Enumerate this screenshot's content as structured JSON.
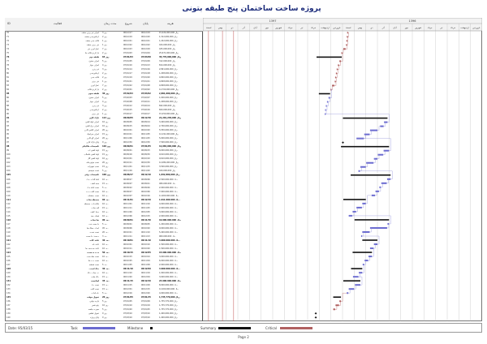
{
  "document": {
    "title": "پروژه ساخت ساختمان پنج طبقه بتونی",
    "page_label": "Page 2",
    "date_label": "Date: 95/03/15"
  },
  "table": {
    "headers": {
      "id": "ID",
      "name": "فعالیت",
      "duration": "مدت زمان",
      "start": "شروع",
      "finish": "پایان",
      "cost": "هزینه"
    }
  },
  "timeline": {
    "years": [
      "1396",
      "1397"
    ],
    "months": [
      "فروردین",
      "اردیبهشت",
      "خرداد",
      "تیر",
      "مرداد",
      "شهریور",
      "مهر",
      "آبان",
      "آذر",
      "دی",
      "بهمن",
      "اسفند",
      "فروردین",
      "اردیبهشت",
      "خرداد",
      "تیر",
      "مرداد",
      "شهریور",
      "مهر",
      "آبان",
      "آذر",
      "دی",
      "بهمن",
      "اسفند"
    ]
  },
  "legend": {
    "task": "Task",
    "milestone": "Milestone",
    "summary": "Summary",
    "critical": "Critical"
  },
  "colors": {
    "task": "#6b6bd0",
    "summary": "#111111",
    "critical": "#b06060",
    "link": "#8a8ad8",
    "grid": "#b0b0b0"
  },
  "rows": [
    {
      "id": "70",
      "name": "اجرای تیر ریزی سقف",
      "dur": "3 روز",
      "start": "96/12/17",
      "finish": "96/12/19",
      "cost": "15,424,000,000 ریال",
      "sum": false,
      "bar": null
    },
    {
      "id": "71",
      "name": "آرماتوربندی سقف",
      "dur": "2 روز",
      "start": "96/12/19",
      "finish": "96/12/20",
      "cost": "1,312,000,000 ریال",
      "sum": false,
      "bar": null
    },
    {
      "id": "72",
      "name": "قالب بندی سقف",
      "dur": "1 روز",
      "start": "96/12/21",
      "finish": "96/12/21",
      "cost": "1,242,000,000 ریال",
      "sum": false,
      "bar": null
    },
    {
      "id": "73",
      "name": "بتن ریزی سقف",
      "dur": "1 روز",
      "start": "96/12/22",
      "finish": "96/12/22",
      "cost": "424,000,000 ریال",
      "sum": false,
      "bar": null
    },
    {
      "id": "74",
      "name": "عمل آوری بتن",
      "dur": "7 روز",
      "start": "96/12/23",
      "finish": "96/12/29",
      "cost": "425,000,000 ریال",
      "sum": false,
      "bar": null
    },
    {
      "id": "75",
      "name": "باز کردن قالب ها",
      "dur": "2 روز",
      "start": "97/01/03",
      "finish": "97/01/04",
      "cost": "25,671,000,000 ریال",
      "sum": false,
      "bar": null
    },
    {
      "id": "76",
      "name": "طبقه دوم",
      "dur": "64 روز",
      "start": "97/01/03",
      "finish": "97/03/08",
      "cost": "35,770,000,000 ریال",
      "sum": true,
      "bar": null
    },
    {
      "id": "77",
      "name": "اجرای ستون",
      "dur": "5 روز",
      "start": "97/01/05",
      "finish": "97/01/09",
      "cost": "312,000,000 ریال",
      "sum": false,
      "bar": null
    },
    {
      "id": "78",
      "name": "اجرای دیوار",
      "dur": "4 روز",
      "start": "97/01/10",
      "finish": "97/01/13",
      "cost": "814,000,000 ریال",
      "sum": false,
      "bar": null
    },
    {
      "id": "79",
      "name": "تیر ریزی",
      "dur": "3 روز",
      "start": "97/01/14",
      "finish": "97/01/16",
      "cost": "2,891,000,000 ریال",
      "sum": false,
      "bar": null
    },
    {
      "id": "80",
      "name": "آرماتوربندی",
      "dur": "2 روز",
      "start": "97/01/17",
      "finish": "97/01/18",
      "cost": "1,208,000,000 ریال",
      "sum": false,
      "bar": null
    },
    {
      "id": "81",
      "name": "قالب بندی",
      "dur": "2 روز",
      "start": "97/01/19",
      "finish": "97/01/20",
      "cost": "4,840,000,000 ریال",
      "sum": false,
      "bar": null
    },
    {
      "id": "82",
      "name": "بتن ریزی",
      "dur": "1 روز",
      "start": "97/01/21",
      "finish": "97/01/21",
      "cost": "4,848,000,000 ریال",
      "sum": false,
      "bar": null
    },
    {
      "id": "83",
      "name": "عمل آوری",
      "dur": "7 روز",
      "start": "97/01/22",
      "finish": "97/01/28",
      "cost": "4,848,000,000 ریال",
      "sum": false,
      "bar": null
    },
    {
      "id": "84",
      "name": "باز کردن قالب",
      "dur": "2 روز",
      "start": "97/02/01",
      "finish": "97/02/02",
      "cost": "14,700,000,000 ریال",
      "sum": false,
      "bar": null
    },
    {
      "id": "85",
      "name": "طبقه سوم",
      "dur": "30 روز",
      "start": "97/02/03",
      "finish": "97/03/02",
      "cost": "2,891,000,000 ریال",
      "sum": true,
      "bar": null
    },
    {
      "id": "86",
      "name": "اجرای ستون",
      "dur": "5 روز",
      "start": "97/02/03",
      "finish": "97/02/07",
      "cost": "1,000,000,000 ریال",
      "sum": false,
      "bar": null
    },
    {
      "id": "87",
      "name": "اجرای دیوار",
      "dur": "4 روز",
      "start": "97/02/08",
      "finish": "97/02/11",
      "cost": "1,208,000,000 ریال",
      "sum": false,
      "bar": null
    },
    {
      "id": "88",
      "name": "تیر ریزی",
      "dur": "3 روز",
      "start": "97/02/12",
      "finish": "97/02/14",
      "cost": "842,000,000 ریال",
      "sum": false,
      "bar": null
    },
    {
      "id": "89",
      "name": "آرماتوربندی",
      "dur": "2 روز",
      "start": "97/02/15",
      "finish": "97/02/16",
      "cost": "820,000,000 ریال",
      "sum": false,
      "bar": null
    },
    {
      "id": "90",
      "name": "بتن ریزی",
      "dur": "1 روز",
      "start": "97/02/17",
      "finish": "97/02/17",
      "cost": "15,250,000,000 ریال",
      "sum": false,
      "bar": null
    },
    {
      "id": "91",
      "name": "نازک کاری",
      "dur": "113 روز",
      "start": "96/09/05",
      "finish": "96/12/30",
      "cost": "21,201,238,000 ریال",
      "sum": true,
      "bar": null
    },
    {
      "id": "92",
      "name": "اجرای لوله کشی",
      "dur": "10 روز",
      "start": "96/09/05",
      "finish": "96/09/14",
      "cost": "3,400,000,000 ریال",
      "sum": false,
      "bar": null
    },
    {
      "id": "93",
      "name": "اجرای برق کشی",
      "dur": "10 روز",
      "start": "96/09/15",
      "finish": "96/09/24",
      "cost": "2,700,000,000 ریال",
      "sum": false,
      "bar": null
    },
    {
      "id": "94",
      "name": "اجرای کاشی کاری",
      "dur": "20 روز",
      "start": "96/10/01",
      "finish": "96/10/20",
      "cost": "5,550,000,000 ریال",
      "sum": false,
      "bar": null
    },
    {
      "id": "95",
      "name": "اجرای سرامیک",
      "dur": "15 روز",
      "start": "96/10/21",
      "finish": "96/11/05",
      "cost": "12,191,000,000 ریال",
      "sum": false,
      "bar": null
    },
    {
      "id": "96",
      "name": "اجرای گچ کاری",
      "dur": "20 روز",
      "start": "96/11/06",
      "finish": "96/11/25",
      "cost": "5,000,000,000 ریال",
      "sum": false,
      "bar": null
    },
    {
      "id": "97",
      "name": "پایان نازک کاری",
      "dur": "0 روز",
      "start": "96/12/30",
      "finish": "96/12/30",
      "cost": "7,500,000,000 ریال",
      "sum": false,
      "bar": null
    },
    {
      "id": "98",
      "name": "تاسیسات مکانیکی",
      "dur": "120 روز",
      "start": "96/09/01",
      "finish": "97/01/05",
      "cost": "12,084,000,000 ریال",
      "sum": true,
      "bar": null
    },
    {
      "id": "99",
      "name": "لوله کشی آب",
      "dur": "15 روز",
      "start": "96/09/01",
      "finish": "96/09/15",
      "cost": "8,000,000,000 ریال",
      "sum": false,
      "bar": null
    },
    {
      "id": "100",
      "name": "لوله کشی فاضلاب",
      "dur": "15 روز",
      "start": "96/09/16",
      "finish": "96/09/30",
      "cost": "9,610,000,000 ریال",
      "sum": false,
      "bar": null
    },
    {
      "id": "101",
      "name": "لوله کشی گاز",
      "dur": "10 روز",
      "start": "96/10/01",
      "finish": "96/10/10",
      "cost": "9,610,000,000 ریال",
      "sum": false,
      "bar": null
    },
    {
      "id": "102",
      "name": "نصب موتورخانه",
      "dur": "20 روز",
      "start": "96/10/11",
      "finish": "96/10/30",
      "cost": "12,084,000,000 ریال",
      "sum": false,
      "bar": null
    },
    {
      "id": "103",
      "name": "نصب تجهیزات",
      "dur": "15 روز",
      "start": "96/11/01",
      "finish": "96/11/15",
      "cost": "3,500,000,000 ریال",
      "sum": false,
      "bar": null
    },
    {
      "id": "104",
      "name": "تست سیستم",
      "dur": "5 روز",
      "start": "96/11/16",
      "finish": "96/11/20",
      "cost": "420,000,000 ریال",
      "sum": false,
      "bar": null
    },
    {
      "id": "105",
      "name": "تاسیسات برقی",
      "dur": "100 روز",
      "start": "96/08/27",
      "finish": "96/12/10",
      "cost": "1,832,800,000 ریال",
      "sum": true,
      "bar": null
    },
    {
      "id": "106",
      "name": "لوله گذاری برق",
      "dur": "10 روز",
      "start": "96/08/27",
      "finish": "96/09/06",
      "cost": "2,500,000,000 ریال",
      "sum": false,
      "bar": null
    },
    {
      "id": "107",
      "name": "سیم کشی",
      "dur": "15 روز",
      "start": "96/09/07",
      "finish": "96/09/21",
      "cost": "480,000,000 ریال",
      "sum": false,
      "bar": null
    },
    {
      "id": "108",
      "name": "نصب تابلو برق",
      "dur": "5 روز",
      "start": "96/09/22",
      "finish": "96/09/26",
      "cost": "2,000,000,000 ریال",
      "sum": false,
      "bar": null
    },
    {
      "id": "109",
      "name": "نصب کلید و پریز",
      "dur": "10 روز",
      "start": "96/09/27",
      "finish": "96/10/06",
      "cost": "7,000,000,000 ریال",
      "sum": false,
      "bar": null
    },
    {
      "id": "110",
      "name": "نصب روشنایی",
      "dur": "10 روز",
      "start": "96/10/07",
      "finish": "96/10/16",
      "cost": "11,900,000,000 ریال",
      "sum": false,
      "bar": null
    },
    {
      "id": "111",
      "name": "محوطه سازی",
      "dur": "60 روز",
      "start": "96/11/01",
      "finish": "96/12/29",
      "cost": "1,011,000,000 ریال",
      "sum": true,
      "bar": null
    },
    {
      "id": "112",
      "name": "خاکبرداری محوطه",
      "dur": "10 روز",
      "start": "96/11/01",
      "finish": "96/11/10",
      "cost": "4,000,000,000 ریال",
      "sum": false,
      "bar": null
    },
    {
      "id": "113",
      "name": "کف سازی",
      "dur": "15 روز",
      "start": "96/11/11",
      "finish": "96/11/25",
      "cost": "2,000,000,000 ریال",
      "sum": false,
      "bar": null
    },
    {
      "id": "114",
      "name": "دیوار کشی",
      "dur": "10 روز",
      "start": "96/11/26",
      "finish": "96/12/05",
      "cost": "3,000,000,000 ریال",
      "sum": false,
      "bar": null
    },
    {
      "id": "115",
      "name": "فضای سبز",
      "dur": "10 روز",
      "start": "96/12/06",
      "finish": "96/12/15",
      "cost": "2,000,000,000 ریال",
      "sum": false,
      "bar": null
    },
    {
      "id": "116",
      "name": "نما سازی",
      "dur": "90 روز",
      "start": "96/09/01",
      "finish": "96/11/30",
      "cost": "19,000,000,000 ریال",
      "sum": true,
      "bar": null
    },
    {
      "id": "117",
      "name": "داربست بندی",
      "dur": "5 روز",
      "start": "96/09/01",
      "finish": "96/09/05",
      "cost": "1,200,000,000 ریال",
      "sum": false,
      "bar": null
    },
    {
      "id": "118",
      "name": "اجرای سنگ نما",
      "dur": "45 روز",
      "start": "96/09/06",
      "finish": "96/10/20",
      "cost": "9,000,000,000 ریال",
      "sum": false,
      "bar": null
    },
    {
      "id": "119",
      "name": "نصب پنجره",
      "dur": "20 روز",
      "start": "96/10/21",
      "finish": "96/11/10",
      "cost": "5,400,000,000 ریال",
      "sum": false,
      "bar": null
    },
    {
      "id": "120",
      "name": "برچیدن داربست",
      "dur": "3 روز",
      "start": "96/11/11",
      "finish": "96/11/13",
      "cost": "960,000,000 ریال",
      "sum": false,
      "bar": null
    },
    {
      "id": "121",
      "name": "عایق کاری",
      "dur": "40 روز",
      "start": "96/10/01",
      "finish": "96/11/10",
      "cost": "3,000,000,000 ریال",
      "sum": true,
      "bar": null
    },
    {
      "id": "122",
      "name": "عایق بام",
      "dur": "10 روز",
      "start": "96/10/01",
      "finish": "96/10/10",
      "cost": "1,500,000,000 ریال",
      "sum": false,
      "bar": null
    },
    {
      "id": "123",
      "name": "عایق سرویس ها",
      "dur": "10 روز",
      "start": "96/10/11",
      "finish": "96/10/20",
      "cost": "1,500,000,000 ریال",
      "sum": false,
      "bar": null
    },
    {
      "id": "124",
      "name": "درب و پنجره",
      "dur": "50 روز",
      "start": "96/10/15",
      "finish": "96/12/05",
      "cost": "15,000,000,000 ریال",
      "sum": true,
      "bar": null
    },
    {
      "id": "125",
      "name": "نصب چهارچوب",
      "dur": "10 روز",
      "start": "96/10/15",
      "finish": "96/10/24",
      "cost": "3,000,000,000 ریال",
      "sum": false,
      "bar": null
    },
    {
      "id": "126",
      "name": "نصب درب ها",
      "dur": "10 روز",
      "start": "96/10/25",
      "finish": "96/11/04",
      "cost": "6,000,000,000 ریال",
      "sum": false,
      "bar": null
    },
    {
      "id": "127",
      "name": "نصب شیشه",
      "dur": "5 روز",
      "start": "96/11/05",
      "finish": "96/11/09",
      "cost": "2,000,000,000 ریال",
      "sum": false,
      "bar": null
    },
    {
      "id": "128",
      "name": "رنگ آمیزی",
      "dur": "30 روز",
      "start": "96/11/10",
      "finish": "96/12/09",
      "cost": "4,000,000,000 ریال",
      "sum": true,
      "bar": null
    },
    {
      "id": "129",
      "name": "زیر سازی رنگ",
      "dur": "10 روز",
      "start": "96/11/10",
      "finish": "96/11/19",
      "cost": "1,000,000,000 ریال",
      "sum": false,
      "bar": null
    },
    {
      "id": "130",
      "name": "رنگ نهایی",
      "dur": "15 روز",
      "start": "96/11/20",
      "finish": "96/12/04",
      "cost": "3,000,000,000 ریال",
      "sum": false,
      "bar": null
    },
    {
      "id": "131",
      "name": "آسانسور",
      "dur": "45 روز",
      "start": "96/11/15",
      "finish": "96/12/29",
      "cost": "24,000,000,000 ریال",
      "sum": true,
      "bar": null
    },
    {
      "id": "132",
      "name": "نصب ریل",
      "dur": "15 روز",
      "start": "96/11/15",
      "finish": "96/11/29",
      "cost": "8,000,000,000 ریال",
      "sum": false,
      "bar": null
    },
    {
      "id": "133",
      "name": "نصب کابین",
      "dur": "15 روز",
      "start": "96/12/01",
      "finish": "96/12/15",
      "cost": "12,000,000,000 ریال",
      "sum": false,
      "bar": null
    },
    {
      "id": "134",
      "name": "راه اندازی",
      "dur": "5 روز",
      "start": "96/12/16",
      "finish": "96/12/20",
      "cost": "4,000,000,000 ریال",
      "sum": false,
      "bar": null
    },
    {
      "id": "135",
      "name": "تحویل موقت",
      "dur": "20 روز",
      "start": "97/01/05",
      "finish": "97/01/25",
      "cost": "1,735,770,000 ریال",
      "sum": true,
      "bar": null
    },
    {
      "id": "136",
      "name": "بازدید نهایی",
      "dur": "5 روز",
      "start": "97/01/05",
      "finish": "97/01/09",
      "cost": "1,735,770,000 ریال",
      "sum": false,
      "bar": null
    },
    {
      "id": "137",
      "name": "رفع نقص",
      "dur": "10 روز",
      "start": "97/01/10",
      "finish": "97/01/19",
      "cost": "1,735,770,000 ریال",
      "sum": false,
      "bar": null
    },
    {
      "id": "138",
      "name": "صورت جلسه",
      "dur": "5 روز",
      "start": "97/01/20",
      "finish": "97/01/25",
      "cost": "1,735,770,000 ریال",
      "sum": false,
      "bar": null
    },
    {
      "id": "139",
      "name": "تحویل قطعی",
      "dur": "0 روز",
      "start": "97/03/10",
      "finish": "97/03/10",
      "cost": "1,400,000,000 ریال",
      "sum": false,
      "bar": null
    },
    {
      "id": "140",
      "name": "پایان پروژه",
      "dur": "0 روز",
      "start": "97/03/10",
      "finish": "97/03/10",
      "cost": "1,400,000,000 ریال",
      "sum": false,
      "bar": null
    }
  ]
}
